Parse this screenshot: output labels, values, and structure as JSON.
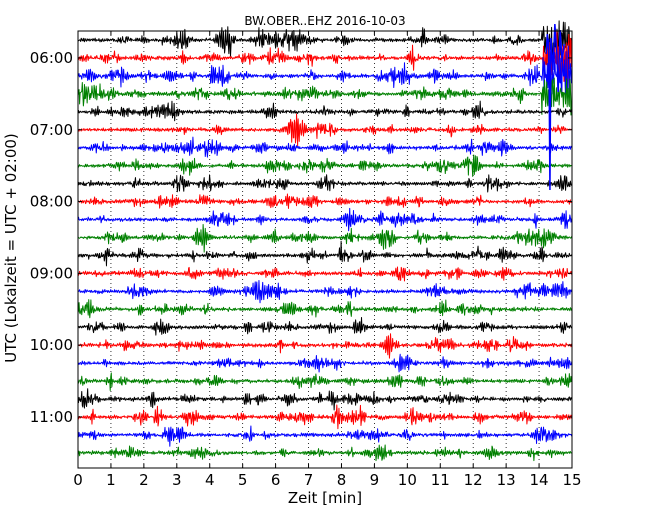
{
  "chart_data": {
    "type": "line",
    "title": "BW.OBER..EHZ 2016-10-03",
    "xlabel": "Zeit  [min]",
    "ylabel": "UTC (Lokalzeit = UTC + 02:00)",
    "xlim": [
      0,
      15
    ],
    "x_ticks": [
      "0",
      "1",
      "2",
      "3",
      "4",
      "5",
      "6",
      "7",
      "8",
      "9",
      "10",
      "11",
      "12",
      "13",
      "14",
      "15"
    ],
    "y_ticks": [
      "06:00",
      "07:00",
      "08:00",
      "09:00",
      "10:00",
      "11:00"
    ],
    "grid": "vertical dotted",
    "line_colors": [
      "#000000",
      "#ff0000",
      "#0000ff",
      "#008000"
    ],
    "series": [
      {
        "start": "05:45",
        "color": "#000000"
      },
      {
        "start": "06:00",
        "color": "#ff0000"
      },
      {
        "start": "06:15",
        "color": "#0000ff"
      },
      {
        "start": "06:30",
        "color": "#008000"
      },
      {
        "start": "06:45",
        "color": "#000000"
      },
      {
        "start": "07:00",
        "color": "#ff0000"
      },
      {
        "start": "07:15",
        "color": "#0000ff"
      },
      {
        "start": "07:30",
        "color": "#008000"
      },
      {
        "start": "07:45",
        "color": "#000000"
      },
      {
        "start": "08:00",
        "color": "#ff0000"
      },
      {
        "start": "08:15",
        "color": "#0000ff"
      },
      {
        "start": "08:30",
        "color": "#008000"
      },
      {
        "start": "08:45",
        "color": "#000000"
      },
      {
        "start": "09:00",
        "color": "#ff0000"
      },
      {
        "start": "09:15",
        "color": "#0000ff"
      },
      {
        "start": "09:30",
        "color": "#008000"
      },
      {
        "start": "09:45",
        "color": "#000000"
      },
      {
        "start": "10:00",
        "color": "#ff0000"
      },
      {
        "start": "10:15",
        "color": "#0000ff"
      },
      {
        "start": "10:30",
        "color": "#008000"
      },
      {
        "start": "10:45",
        "color": "#000000"
      },
      {
        "start": "11:00",
        "color": "#ff0000"
      },
      {
        "start": "11:15",
        "color": "#0000ff"
      },
      {
        "start": "11:30",
        "color": "#008000"
      }
    ]
  }
}
